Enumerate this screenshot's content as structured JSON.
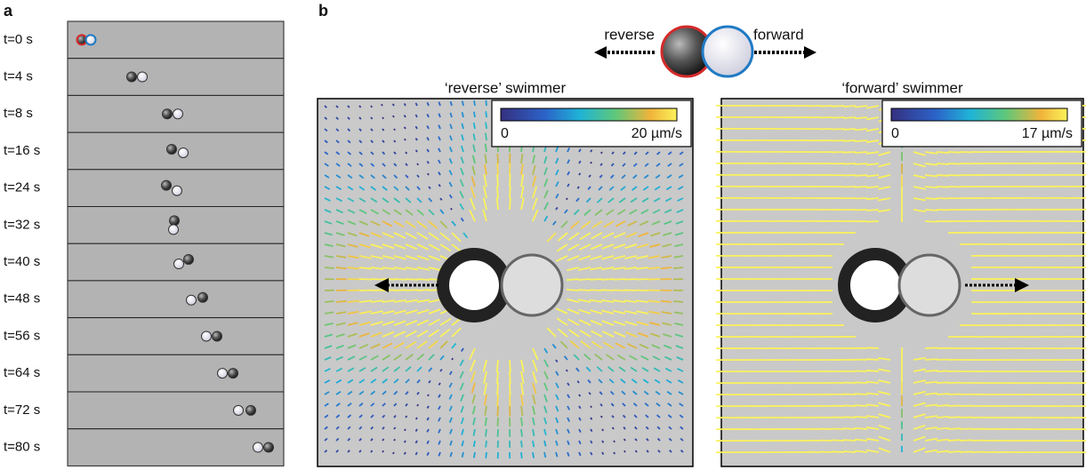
{
  "panel_a": {
    "label": "a",
    "frames": [
      "t=0 s",
      "t=4 s",
      "t=8 s",
      "t=16 s",
      "t=24 s",
      "t=32 s",
      "t=40 s",
      "t=48 s",
      "t=56 s",
      "t=64 s",
      "t=72 s",
      "t=80 s"
    ]
  },
  "panel_b": {
    "label": "b",
    "legend": {
      "left": "reverse",
      "right": "forward"
    },
    "panels": [
      {
        "title": "‘reverse’ swimmer",
        "colorbar": {
          "min": "0",
          "max": "20 µm/s"
        }
      },
      {
        "title": "‘forward’ swimmer",
        "colorbar": {
          "min": "0",
          "max": "17 µm/s"
        }
      }
    ]
  }
}
